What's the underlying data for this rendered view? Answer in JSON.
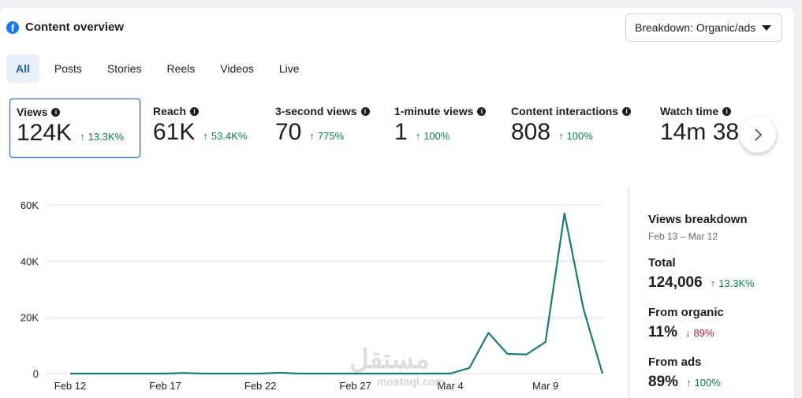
{
  "header": {
    "title": "Content overview",
    "breakdown_label": "Breakdown: Organic/ads"
  },
  "icons": {
    "brand": "facebook-icon",
    "info": "info-icon",
    "caret": "caret-down-icon",
    "next": "chevron-right-icon",
    "up": "arrow-up-icon",
    "down": "arrow-down-icon"
  },
  "colors": {
    "accent": "#1f5fb8",
    "positive": "#0e7a5a",
    "negative": "#a3262d",
    "line": "#1a7a7a"
  },
  "tabs": [
    {
      "label": "All",
      "active": true
    },
    {
      "label": "Posts"
    },
    {
      "label": "Stories"
    },
    {
      "label": "Reels"
    },
    {
      "label": "Videos"
    },
    {
      "label": "Live"
    }
  ],
  "metrics": [
    {
      "label": "Views",
      "value": "124K",
      "delta": "13.3K%",
      "selected": true
    },
    {
      "label": "Reach",
      "value": "61K",
      "delta": "53.4K%"
    },
    {
      "label": "3-second views",
      "value": "70",
      "delta": "775%"
    },
    {
      "label": "1-minute views",
      "value": "1",
      "delta": "100%"
    },
    {
      "label": "Content interactions",
      "value": "808",
      "delta": "100%"
    },
    {
      "label": "Watch time",
      "value": "14m 38",
      "delta": ""
    }
  ],
  "chart_data": {
    "type": "line",
    "title": "",
    "xlabel": "",
    "ylabel": "",
    "ylim": [
      0,
      60000
    ],
    "y_ticks": [
      "0",
      "20K",
      "40K",
      "60K"
    ],
    "y_tick_values": [
      0,
      20000,
      40000,
      60000
    ],
    "x_tick_labels": [
      "Feb 12",
      "Feb 17",
      "Feb 22",
      "Feb 27",
      "Mar 4",
      "Mar 9"
    ],
    "x_tick_index": [
      0,
      5,
      10,
      15,
      20,
      25
    ],
    "x": [
      "Feb 12",
      "Feb 13",
      "Feb 14",
      "Feb 15",
      "Feb 16",
      "Feb 17",
      "Feb 18",
      "Feb 19",
      "Feb 20",
      "Feb 21",
      "Feb 22",
      "Feb 23",
      "Feb 24",
      "Feb 25",
      "Feb 26",
      "Feb 27",
      "Feb 28",
      "Mar 1",
      "Mar 2",
      "Mar 3",
      "Mar 4",
      "Mar 5",
      "Mar 6",
      "Mar 7",
      "Mar 8",
      "Mar 9",
      "Mar 10",
      "Mar 11",
      "Mar 12"
    ],
    "series": [
      {
        "values": [
          0,
          0,
          0,
          0,
          0,
          0,
          200,
          0,
          0,
          0,
          0,
          300,
          0,
          0,
          0,
          0,
          0,
          0,
          0,
          0,
          0,
          2000,
          14500,
          7000,
          6800,
          11200,
          57000,
          23000,
          0
        ]
      }
    ],
    "grid": true,
    "legend": "none"
  },
  "sidebar": {
    "title": "Views breakdown",
    "date_range": "Feb 13 – Mar 12",
    "total_label": "Total",
    "total_value": "124,006",
    "total_delta": "13.3K%",
    "organic_label": "From organic",
    "organic_value": "11%",
    "organic_delta": "89%",
    "ads_label": "From ads",
    "ads_value": "89%",
    "ads_delta": "100%"
  },
  "watermark": {
    "text": "مستقل",
    "sub": "mostaql.com"
  }
}
